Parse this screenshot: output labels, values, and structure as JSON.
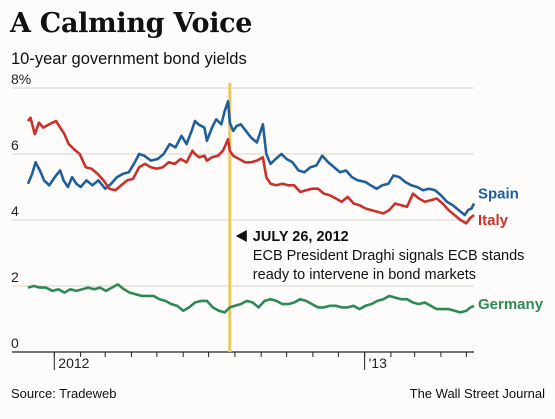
{
  "title": "A Calming Voice",
  "subtitle": "10-year government bond yields",
  "source": "Source: Tradeweb",
  "credit": "The Wall Street Journal",
  "chart_data": {
    "type": "line",
    "ylim": [
      0,
      8
    ],
    "y_ticks": [
      0,
      2,
      4,
      6,
      8
    ],
    "y_tick_labels": [
      "0",
      "2",
      "4",
      "6",
      "8%"
    ],
    "xlim": [
      "2011-12-01",
      "2013-05-10"
    ],
    "x_tick_labels": [
      {
        "label": "2012",
        "x": "2012-01-01"
      },
      {
        "label": "'13",
        "x": "2013-01-01"
      }
    ],
    "annotation": {
      "x": "2012-07-26",
      "title": "JULY 26, 2012",
      "lines": [
        "ECB President Draghi signals ECB stands",
        "ready to intervene in bond markets"
      ]
    },
    "series": [
      {
        "name": "Spain",
        "color": "#1f5f9c",
        "points": [
          [
            "2011-12-01",
            5.1
          ],
          [
            "2011-12-06",
            5.4
          ],
          [
            "2011-12-10",
            5.75
          ],
          [
            "2011-12-15",
            5.5
          ],
          [
            "2011-12-20",
            5.2
          ],
          [
            "2011-12-26",
            5.05
          ],
          [
            "2012-01-03",
            5.35
          ],
          [
            "2012-01-08",
            5.5
          ],
          [
            "2012-01-12",
            5.2
          ],
          [
            "2012-01-17",
            5.0
          ],
          [
            "2012-01-22",
            5.3
          ],
          [
            "2012-01-27",
            5.1
          ],
          [
            "2012-02-01",
            5.0
          ],
          [
            "2012-02-08",
            5.2
          ],
          [
            "2012-02-15",
            5.05
          ],
          [
            "2012-02-22",
            5.2
          ],
          [
            "2012-03-01",
            4.95
          ],
          [
            "2012-03-08",
            5.1
          ],
          [
            "2012-03-15",
            5.3
          ],
          [
            "2012-03-22",
            5.4
          ],
          [
            "2012-03-29",
            5.45
          ],
          [
            "2012-04-05",
            5.75
          ],
          [
            "2012-04-10",
            6.0
          ],
          [
            "2012-04-16",
            5.95
          ],
          [
            "2012-04-24",
            5.8
          ],
          [
            "2012-05-02",
            5.85
          ],
          [
            "2012-05-09",
            6.0
          ],
          [
            "2012-05-16",
            6.3
          ],
          [
            "2012-05-23",
            6.2
          ],
          [
            "2012-05-30",
            6.55
          ],
          [
            "2012-06-05",
            6.3
          ],
          [
            "2012-06-11",
            6.7
          ],
          [
            "2012-06-15",
            7.0
          ],
          [
            "2012-06-19",
            6.9
          ],
          [
            "2012-06-26",
            6.8
          ],
          [
            "2012-06-29",
            6.4
          ],
          [
            "2012-07-05",
            6.8
          ],
          [
            "2012-07-10",
            7.05
          ],
          [
            "2012-07-16",
            6.9
          ],
          [
            "2012-07-20",
            7.3
          ],
          [
            "2012-07-24",
            7.6
          ],
          [
            "2012-07-26",
            6.95
          ],
          [
            "2012-07-30",
            6.7
          ],
          [
            "2012-08-03",
            6.85
          ],
          [
            "2012-08-08",
            6.9
          ],
          [
            "2012-08-14",
            6.7
          ],
          [
            "2012-08-20",
            6.5
          ],
          [
            "2012-08-27",
            6.35
          ],
          [
            "2012-09-03",
            6.9
          ],
          [
            "2012-09-07",
            6.0
          ],
          [
            "2012-09-12",
            5.7
          ],
          [
            "2012-09-18",
            5.85
          ],
          [
            "2012-09-25",
            6.0
          ],
          [
            "2012-10-01",
            5.85
          ],
          [
            "2012-10-08",
            5.75
          ],
          [
            "2012-10-15",
            5.5
          ],
          [
            "2012-10-22",
            5.45
          ],
          [
            "2012-10-29",
            5.6
          ],
          [
            "2012-11-05",
            5.65
          ],
          [
            "2012-11-12",
            5.95
          ],
          [
            "2012-11-19",
            5.75
          ],
          [
            "2012-11-26",
            5.6
          ],
          [
            "2012-12-03",
            5.45
          ],
          [
            "2012-12-10",
            5.5
          ],
          [
            "2012-12-17",
            5.3
          ],
          [
            "2012-12-24",
            5.2
          ],
          [
            "2013-01-02",
            5.15
          ],
          [
            "2013-01-08",
            5.05
          ],
          [
            "2013-01-15",
            4.95
          ],
          [
            "2013-01-22",
            5.05
          ],
          [
            "2013-01-29",
            5.1
          ],
          [
            "2013-02-04",
            5.35
          ],
          [
            "2013-02-11",
            5.3
          ],
          [
            "2013-02-18",
            5.15
          ],
          [
            "2013-02-25",
            5.05
          ],
          [
            "2013-03-04",
            5.0
          ],
          [
            "2013-03-11",
            4.9
          ],
          [
            "2013-03-18",
            4.95
          ],
          [
            "2013-03-25",
            4.9
          ],
          [
            "2013-04-01",
            4.75
          ],
          [
            "2013-04-08",
            4.55
          ],
          [
            "2013-04-15",
            4.45
          ],
          [
            "2013-04-22",
            4.3
          ],
          [
            "2013-04-29",
            4.15
          ],
          [
            "2013-05-03",
            4.3
          ],
          [
            "2013-05-07",
            4.35
          ],
          [
            "2013-05-10",
            4.5
          ]
        ]
      },
      {
        "name": "Italy",
        "color": "#c8322b",
        "points": [
          [
            "2011-12-01",
            7.0
          ],
          [
            "2011-12-04",
            7.1
          ],
          [
            "2011-12-09",
            6.6
          ],
          [
            "2011-12-14",
            6.95
          ],
          [
            "2011-12-19",
            6.8
          ],
          [
            "2011-12-26",
            6.9
          ],
          [
            "2012-01-03",
            7.0
          ],
          [
            "2012-01-08",
            6.8
          ],
          [
            "2012-01-13",
            6.6
          ],
          [
            "2012-01-18",
            6.3
          ],
          [
            "2012-01-24",
            6.15
          ],
          [
            "2012-01-31",
            6.0
          ],
          [
            "2012-02-07",
            5.6
          ],
          [
            "2012-02-14",
            5.55
          ],
          [
            "2012-02-21",
            5.4
          ],
          [
            "2012-02-28",
            5.2
          ],
          [
            "2012-03-06",
            4.95
          ],
          [
            "2012-03-13",
            4.9
          ],
          [
            "2012-03-20",
            5.05
          ],
          [
            "2012-03-27",
            5.2
          ],
          [
            "2012-04-03",
            5.25
          ],
          [
            "2012-04-10",
            5.6
          ],
          [
            "2012-04-17",
            5.7
          ],
          [
            "2012-04-24",
            5.6
          ],
          [
            "2012-05-01",
            5.55
          ],
          [
            "2012-05-08",
            5.6
          ],
          [
            "2012-05-15",
            5.75
          ],
          [
            "2012-05-22",
            5.7
          ],
          [
            "2012-05-29",
            5.85
          ],
          [
            "2012-06-05",
            5.75
          ],
          [
            "2012-06-12",
            6.1
          ],
          [
            "2012-06-15",
            6.0
          ],
          [
            "2012-06-20",
            5.9
          ],
          [
            "2012-06-26",
            5.95
          ],
          [
            "2012-06-29",
            5.8
          ],
          [
            "2012-07-05",
            5.9
          ],
          [
            "2012-07-12",
            5.95
          ],
          [
            "2012-07-18",
            6.1
          ],
          [
            "2012-07-24",
            6.45
          ],
          [
            "2012-07-26",
            6.1
          ],
          [
            "2012-07-30",
            5.95
          ],
          [
            "2012-08-06",
            5.85
          ],
          [
            "2012-08-13",
            5.75
          ],
          [
            "2012-08-20",
            5.75
          ],
          [
            "2012-08-27",
            5.8
          ],
          [
            "2012-09-03",
            5.9
          ],
          [
            "2012-09-07",
            5.3
          ],
          [
            "2012-09-12",
            5.1
          ],
          [
            "2012-09-19",
            5.05
          ],
          [
            "2012-09-26",
            5.1
          ],
          [
            "2012-10-03",
            5.05
          ],
          [
            "2012-10-10",
            5.05
          ],
          [
            "2012-10-17",
            4.85
          ],
          [
            "2012-10-24",
            4.9
          ],
          [
            "2012-10-31",
            4.95
          ],
          [
            "2012-11-07",
            4.95
          ],
          [
            "2012-11-14",
            4.8
          ],
          [
            "2012-11-21",
            4.75
          ],
          [
            "2012-11-28",
            4.65
          ],
          [
            "2012-12-05",
            4.55
          ],
          [
            "2012-12-12",
            4.7
          ],
          [
            "2012-12-19",
            4.5
          ],
          [
            "2012-12-26",
            4.45
          ],
          [
            "2013-01-02",
            4.35
          ],
          [
            "2013-01-09",
            4.3
          ],
          [
            "2013-01-16",
            4.25
          ],
          [
            "2013-01-23",
            4.2
          ],
          [
            "2013-01-30",
            4.3
          ],
          [
            "2013-02-06",
            4.5
          ],
          [
            "2013-02-13",
            4.45
          ],
          [
            "2013-02-20",
            4.4
          ],
          [
            "2013-02-27",
            4.8
          ],
          [
            "2013-03-06",
            4.65
          ],
          [
            "2013-03-13",
            4.55
          ],
          [
            "2013-03-20",
            4.6
          ],
          [
            "2013-03-27",
            4.65
          ],
          [
            "2013-04-03",
            4.5
          ],
          [
            "2013-04-10",
            4.3
          ],
          [
            "2013-04-17",
            4.15
          ],
          [
            "2013-04-24",
            4.0
          ],
          [
            "2013-05-01",
            3.9
          ],
          [
            "2013-05-05",
            4.05
          ],
          [
            "2013-05-10",
            4.15
          ]
        ]
      },
      {
        "name": "Germany",
        "color": "#2e8a55",
        "points": [
          [
            "2011-12-01",
            1.95
          ],
          [
            "2011-12-08",
            2.0
          ],
          [
            "2011-12-15",
            1.95
          ],
          [
            "2011-12-22",
            1.95
          ],
          [
            "2011-12-30",
            1.85
          ],
          [
            "2012-01-06",
            1.9
          ],
          [
            "2012-01-13",
            1.8
          ],
          [
            "2012-01-20",
            1.9
          ],
          [
            "2012-01-27",
            1.85
          ],
          [
            "2012-02-03",
            1.9
          ],
          [
            "2012-02-10",
            1.95
          ],
          [
            "2012-02-17",
            1.9
          ],
          [
            "2012-02-24",
            1.95
          ],
          [
            "2012-03-02",
            1.85
          ],
          [
            "2012-03-09",
            1.95
          ],
          [
            "2012-03-16",
            2.05
          ],
          [
            "2012-03-23",
            1.9
          ],
          [
            "2012-03-30",
            1.8
          ],
          [
            "2012-04-06",
            1.75
          ],
          [
            "2012-04-13",
            1.7
          ],
          [
            "2012-04-20",
            1.7
          ],
          [
            "2012-04-27",
            1.7
          ],
          [
            "2012-05-04",
            1.6
          ],
          [
            "2012-05-11",
            1.55
          ],
          [
            "2012-05-18",
            1.45
          ],
          [
            "2012-05-25",
            1.4
          ],
          [
            "2012-06-01",
            1.25
          ],
          [
            "2012-06-08",
            1.35
          ],
          [
            "2012-06-15",
            1.5
          ],
          [
            "2012-06-22",
            1.55
          ],
          [
            "2012-06-29",
            1.55
          ],
          [
            "2012-07-06",
            1.35
          ],
          [
            "2012-07-13",
            1.25
          ],
          [
            "2012-07-20",
            1.2
          ],
          [
            "2012-07-26",
            1.35
          ],
          [
            "2012-08-01",
            1.4
          ],
          [
            "2012-08-08",
            1.45
          ],
          [
            "2012-08-15",
            1.55
          ],
          [
            "2012-08-22",
            1.5
          ],
          [
            "2012-08-29",
            1.35
          ],
          [
            "2012-09-05",
            1.55
          ],
          [
            "2012-09-12",
            1.6
          ],
          [
            "2012-09-19",
            1.55
          ],
          [
            "2012-09-26",
            1.45
          ],
          [
            "2012-10-03",
            1.45
          ],
          [
            "2012-10-10",
            1.5
          ],
          [
            "2012-10-17",
            1.6
          ],
          [
            "2012-10-24",
            1.55
          ],
          [
            "2012-10-31",
            1.45
          ],
          [
            "2012-11-07",
            1.35
          ],
          [
            "2012-11-14",
            1.35
          ],
          [
            "2012-11-21",
            1.4
          ],
          [
            "2012-11-28",
            1.4
          ],
          [
            "2012-12-05",
            1.35
          ],
          [
            "2012-12-12",
            1.35
          ],
          [
            "2012-12-19",
            1.4
          ],
          [
            "2012-12-26",
            1.3
          ],
          [
            "2013-01-02",
            1.4
          ],
          [
            "2013-01-09",
            1.45
          ],
          [
            "2013-01-16",
            1.55
          ],
          [
            "2013-01-23",
            1.6
          ],
          [
            "2013-01-30",
            1.7
          ],
          [
            "2013-02-06",
            1.65
          ],
          [
            "2013-02-13",
            1.6
          ],
          [
            "2013-02-20",
            1.6
          ],
          [
            "2013-02-27",
            1.5
          ],
          [
            "2013-03-06",
            1.45
          ],
          [
            "2013-03-13",
            1.5
          ],
          [
            "2013-03-20",
            1.4
          ],
          [
            "2013-03-27",
            1.3
          ],
          [
            "2013-04-03",
            1.3
          ],
          [
            "2013-04-10",
            1.3
          ],
          [
            "2013-04-17",
            1.25
          ],
          [
            "2013-04-24",
            1.2
          ],
          [
            "2013-05-01",
            1.25
          ],
          [
            "2013-05-06",
            1.35
          ],
          [
            "2013-05-10",
            1.4
          ]
        ]
      }
    ]
  }
}
